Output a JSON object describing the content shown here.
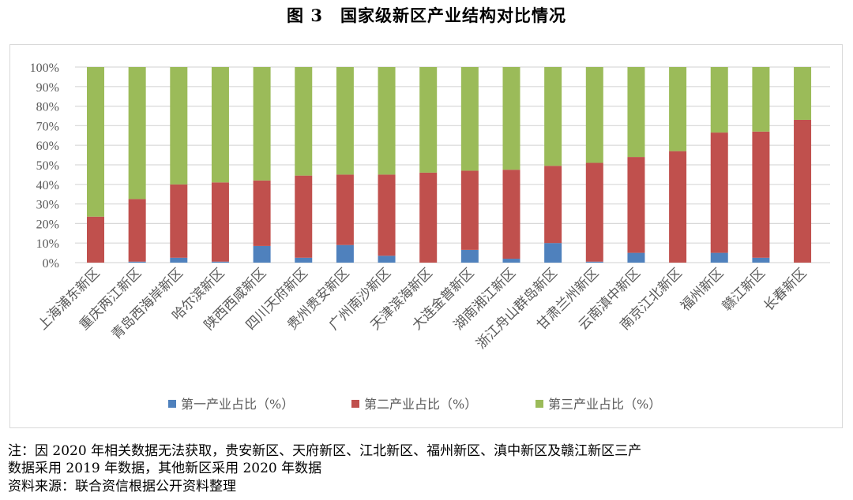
{
  "title": "图 3　国家级新区产业结构对比情况",
  "chart_data": {
    "type": "bar",
    "stacked": "percent",
    "categories": [
      "上海浦东新区",
      "重庆两江新区",
      "青岛西海岸新区",
      "哈尔滨新区",
      "陕西西咸新区",
      "四川天府新区",
      "贵州贵安新区",
      "广州南沙新区",
      "天津滨海新区",
      "大连金普新区",
      "湖南湘江新区",
      "浙江舟山群岛新区",
      "甘肃兰州新区",
      "云南滇中新区",
      "南京江北新区",
      "福州新区",
      "赣江新区",
      "长春新区"
    ],
    "series": [
      {
        "name": "第一产业占比（%）",
        "color": "#4f81bd",
        "values": [
          0,
          0.5,
          2.5,
          0.5,
          8.5,
          2.5,
          9,
          3.5,
          0,
          6.5,
          2,
          10,
          0.5,
          5,
          0,
          5,
          2.5,
          0
        ]
      },
      {
        "name": "第二产业占比（%）",
        "color": "#c0504d",
        "values": [
          23.5,
          32,
          37.5,
          40.5,
          33.5,
          42,
          36,
          41.5,
          46,
          40.5,
          45.5,
          39.5,
          50.5,
          49,
          57,
          61.5,
          64.5,
          73
        ]
      },
      {
        "name": "第三产业占比（%）",
        "color": "#9bbb59",
        "values": [
          76.5,
          67.5,
          60,
          59,
          58,
          55.5,
          55,
          55,
          54,
          53,
          52.5,
          50.5,
          49,
          46,
          43,
          33.5,
          33,
          27
        ]
      }
    ],
    "yticks": [
      "0%",
      "10%",
      "20%",
      "30%",
      "40%",
      "50%",
      "60%",
      "70%",
      "80%",
      "90%",
      "100%"
    ],
    "ylim": [
      0,
      100
    ],
    "grid": true,
    "legend": "bottom"
  },
  "notes": {
    "line1": "注：因 2020 年相关数据无法获取，贵安新区、天府新区、江北新区、福州新区、滇中新区及赣江新区三产",
    "line2": "数据采用 2019 年数据，其他新区采用 2020 年数据",
    "source": "资料来源：联合资信根据公开资料整理"
  }
}
